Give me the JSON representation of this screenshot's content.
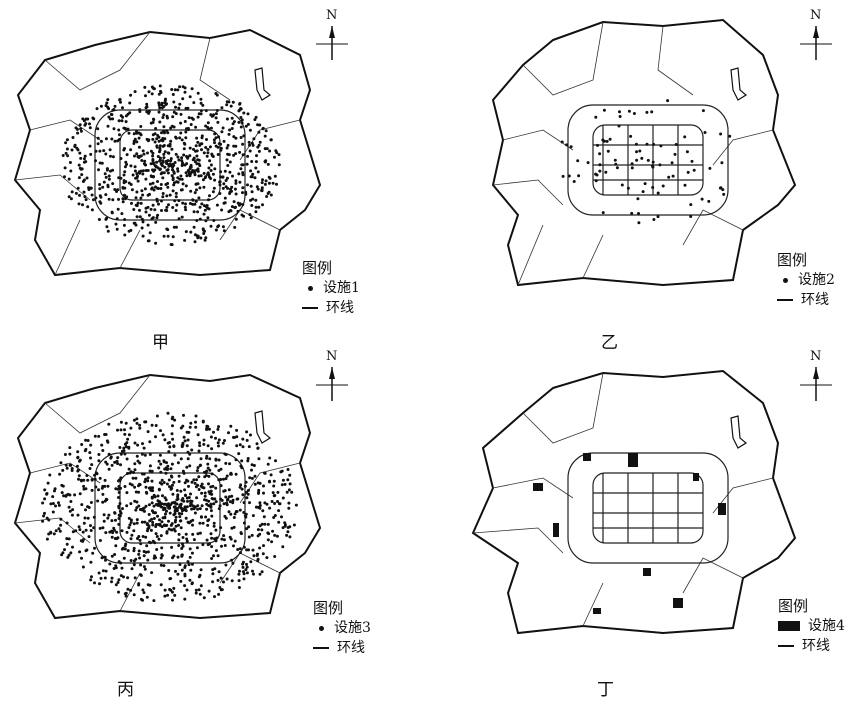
{
  "north_label": "N",
  "legend_title": "图例",
  "ring_label": "环线",
  "panels": [
    {
      "caption": "甲",
      "facility_label": "设施1",
      "marker": "dot",
      "density": "very-high"
    },
    {
      "caption": "乙",
      "facility_label": "设施2",
      "marker": "dot",
      "density": "low"
    },
    {
      "caption": "丙",
      "facility_label": "设施3",
      "marker": "dot",
      "density": "very-high"
    },
    {
      "caption": "丁",
      "facility_label": "设施4",
      "marker": "block",
      "density": "sparse"
    }
  ]
}
